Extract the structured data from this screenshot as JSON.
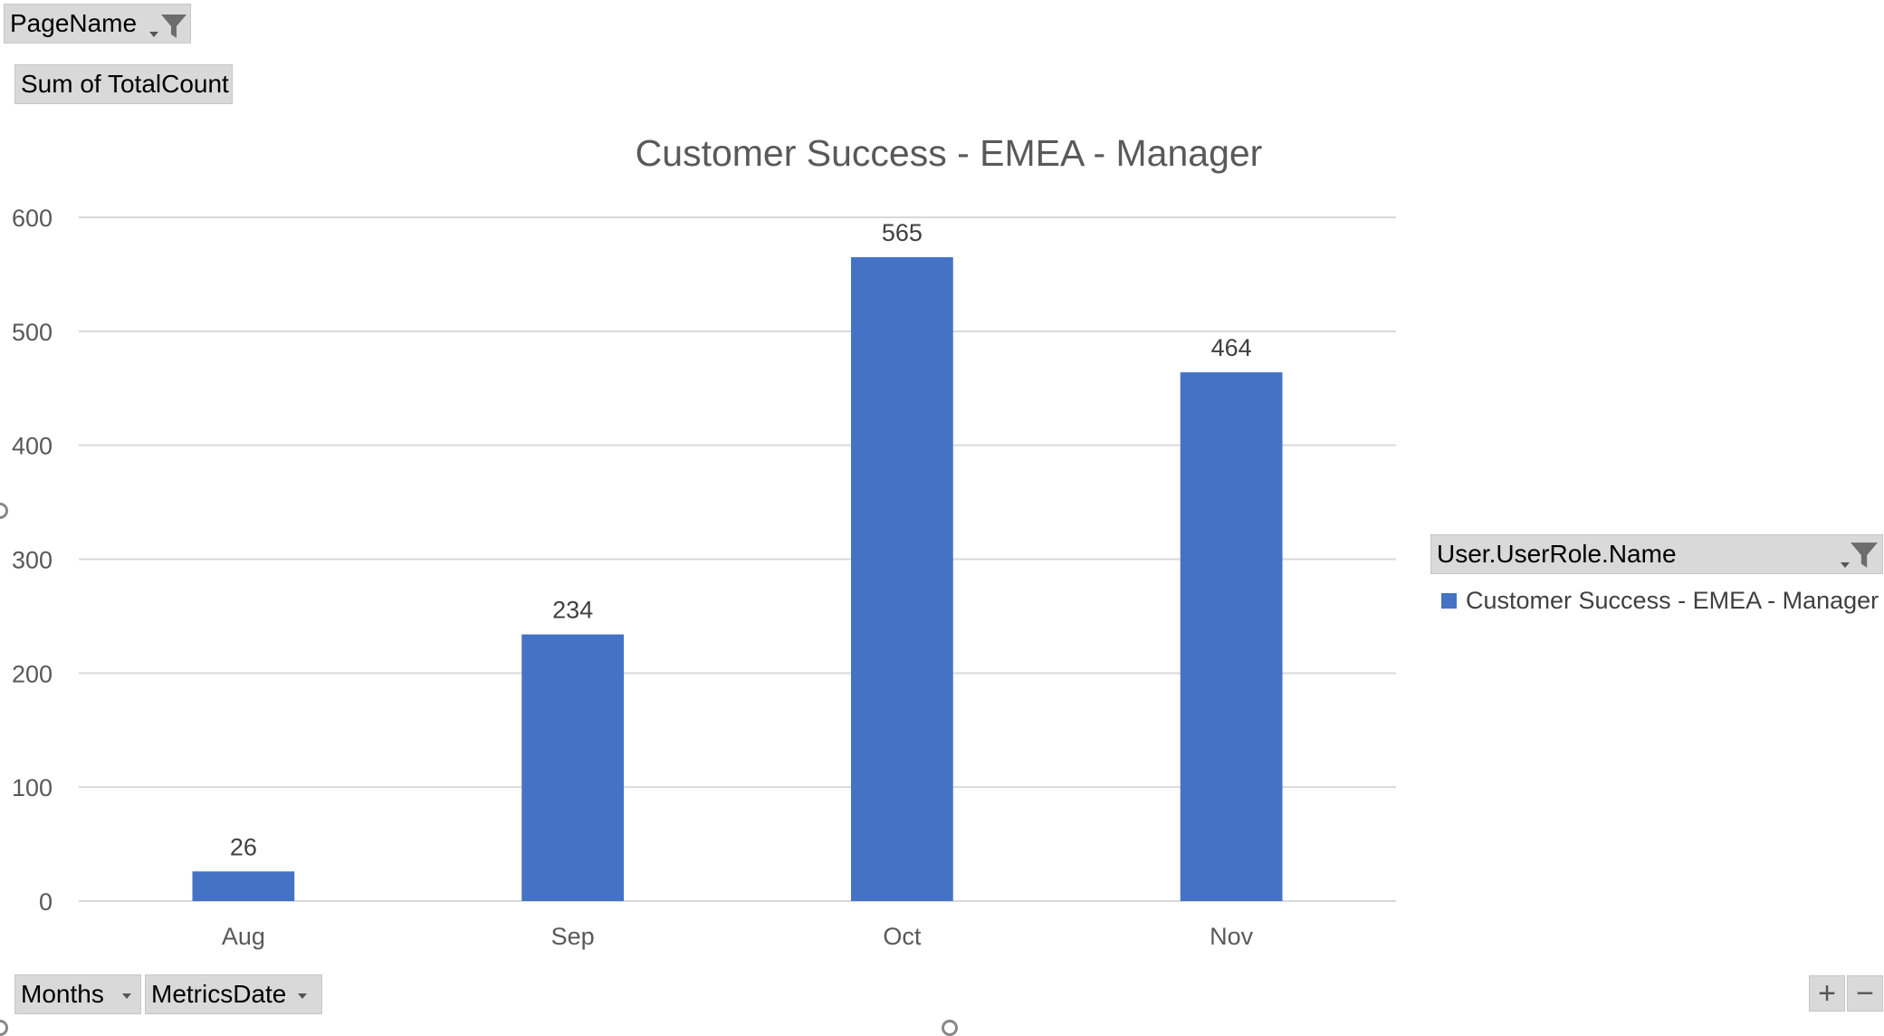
{
  "filters": {
    "page_field": {
      "label": "PageName",
      "icon": "funnel-icon"
    },
    "value_field": {
      "label": "Sum of TotalCount"
    },
    "legend_field": {
      "label": "User.UserRole.Name",
      "icon": "funnel-icon"
    },
    "axis_fields": [
      {
        "label": "Months"
      },
      {
        "label": "MetricsDate"
      }
    ]
  },
  "zoom": {
    "expand_label": "+",
    "collapse_label": "−"
  },
  "colors": {
    "bar": "#4472c4",
    "grid": "#d9d9d9",
    "text": "#595959",
    "button": "#d9d9d9"
  },
  "chart_data": {
    "type": "bar",
    "title": "Customer Success - EMEA - Manager",
    "categories": [
      "Aug",
      "Sep",
      "Oct",
      "Nov"
    ],
    "series": [
      {
        "name": "Customer Success - EMEA - Manager",
        "values": [
          26,
          234,
          565,
          464
        ]
      }
    ],
    "ylim": [
      0,
      600
    ],
    "yticks": [
      0,
      100,
      200,
      300,
      400,
      500,
      600
    ],
    "data_labels": true,
    "grid": true,
    "legend": "right"
  }
}
